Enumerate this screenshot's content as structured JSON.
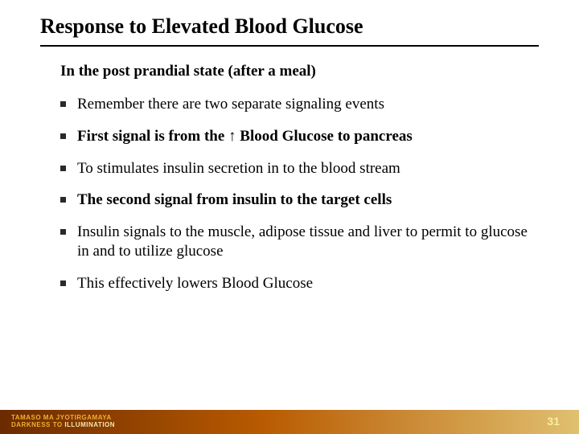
{
  "title": "Response to Elevated Blood Glucose",
  "subtitle": "In the post prandial state (after a meal)",
  "bullets": [
    {
      "text": "Remember there are two separate signaling events",
      "bold": false
    },
    {
      "text": "First signal is from the ↑ Blood Glucose to pancreas",
      "bold": true
    },
    {
      "text": "To stimulates insulin secretion in to the blood stream",
      "bold": false
    },
    {
      "text": "The second signal from insulin to the target cells",
      "bold": true
    },
    {
      "text": "Insulin signals to the muscle, adipose tissue and liver to permit to glucose in and to utilize glucose",
      "bold": false
    },
    {
      "text": "This effectively lowers Blood Glucose",
      "bold": false
    }
  ],
  "footer": {
    "line1": "TAMASO MA JYOTIRGAMAYA",
    "line2_a": "DARKNESS TO ",
    "line2_b": "ILLUMINATION"
  },
  "page_number": "31",
  "colors": {
    "bullet_square": "#2a2a2a",
    "footer_grad_start": "#6b2b00",
    "footer_grad_mid": "#b85a00",
    "footer_grad_end": "#e0c070",
    "pagenum": "#f8f0a0"
  }
}
